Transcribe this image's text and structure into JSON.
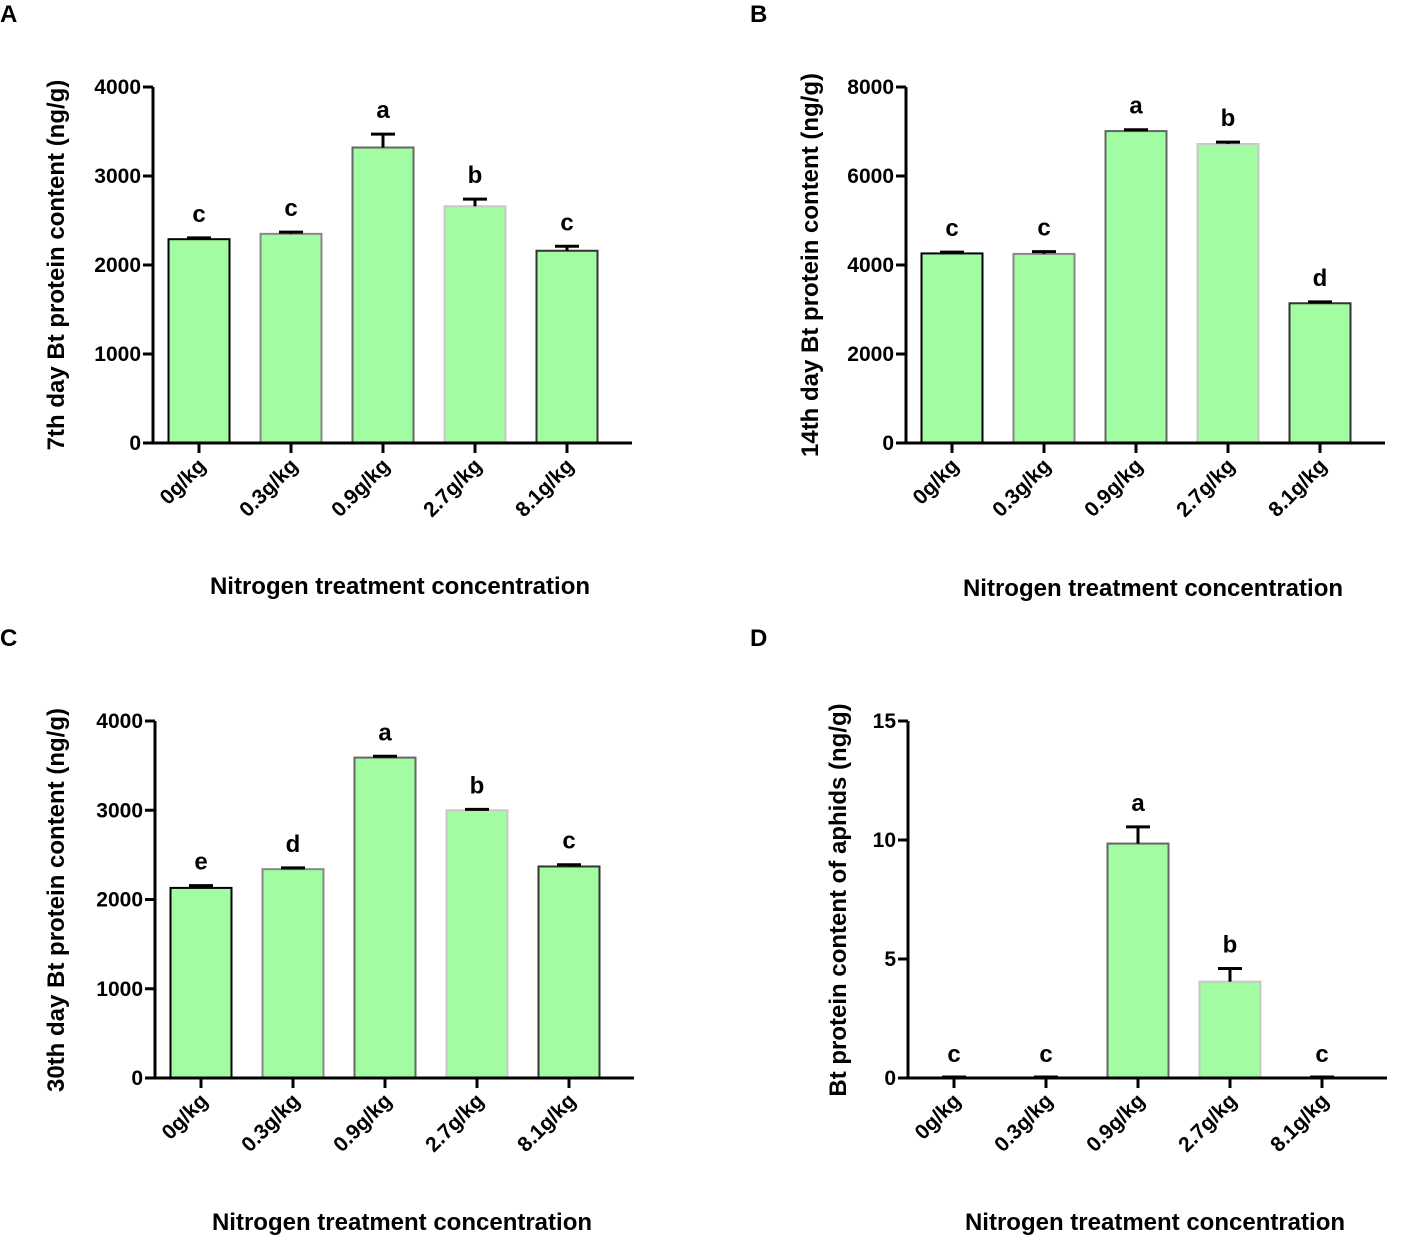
{
  "chart_data": [
    {
      "type": "bar",
      "panel": "A",
      "categories": [
        "0g/kg",
        "0.3g/kg",
        "0.9g/kg",
        "2.7g/kg",
        "8.1g/kg"
      ],
      "values": [
        2290,
        2350,
        3320,
        2660,
        2160
      ],
      "errors": [
        15,
        20,
        150,
        80,
        50
      ],
      "significance": [
        "c",
        "c",
        "a",
        "b",
        "c"
      ],
      "xlabel": "Nitrogen treatment concentration",
      "ylabel": "7th day Bt protein content (ng/g)",
      "ylim": [
        0,
        4000
      ],
      "yticks": [
        0,
        1000,
        2000,
        3000,
        4000
      ],
      "ytick_labels": [
        "0",
        "1000",
        "2000",
        "3000",
        "4000"
      ]
    },
    {
      "type": "bar",
      "panel": "B",
      "categories": [
        "0g/kg",
        "0.3g/kg",
        "0.9g/kg",
        "2.7g/kg",
        "8.1g/kg"
      ],
      "values": [
        4260,
        4250,
        7010,
        6720,
        3140
      ],
      "errors": [
        30,
        50,
        30,
        40,
        30
      ],
      "significance": [
        "c",
        "c",
        "a",
        "b",
        "d"
      ],
      "xlabel": "Nitrogen treatment concentration",
      "ylabel": "14th day Bt protein content (ng/g)",
      "ylim": [
        0,
        8000
      ],
      "yticks": [
        0,
        2000,
        4000,
        6000,
        8000
      ],
      "ytick_labels": [
        "0",
        "2000",
        "4000",
        "6000",
        "8000"
      ]
    },
    {
      "type": "bar",
      "panel": "C",
      "categories": [
        "0g/kg",
        "0.3g/kg",
        "0.9g/kg",
        "2.7g/kg",
        "8.1g/kg"
      ],
      "values": [
        2130,
        2340,
        3590,
        3000,
        2370
      ],
      "errors": [
        25,
        15,
        15,
        10,
        20
      ],
      "significance": [
        "e",
        "d",
        "a",
        "b",
        "c"
      ],
      "xlabel": "Nitrogen treatment concentration",
      "ylabel": "30th day Bt protein content (ng/g)",
      "ylim": [
        0,
        4000
      ],
      "yticks": [
        0,
        1000,
        2000,
        3000,
        4000
      ],
      "ytick_labels": [
        "0",
        "1000",
        "2000",
        "3000",
        "4000"
      ]
    },
    {
      "type": "bar",
      "panel": "D",
      "categories": [
        "0g/kg",
        "0.3g/kg",
        "0.9g/kg",
        "2.7g/kg",
        "8.1g/kg"
      ],
      "values": [
        0,
        0,
        9.85,
        4.05,
        0
      ],
      "errors": [
        0,
        0,
        0.7,
        0.55,
        0
      ],
      "significance": [
        "c",
        "c",
        "a",
        "b",
        "c"
      ],
      "xlabel": "Nitrogen treatment concentration",
      "ylabel": "Bt protein content of aphids (ng/g)",
      "ylim": [
        0,
        15
      ],
      "yticks": [
        0,
        5,
        10,
        15
      ],
      "ytick_labels": [
        "0",
        "5",
        "10",
        "15"
      ]
    }
  ],
  "colors": {
    "bar_fill": "#a2fca2",
    "bar_edges": [
      "#000000",
      "#888888",
      "#666666",
      "#c8c8c8",
      "#333333"
    ],
    "axis": "#000000"
  }
}
